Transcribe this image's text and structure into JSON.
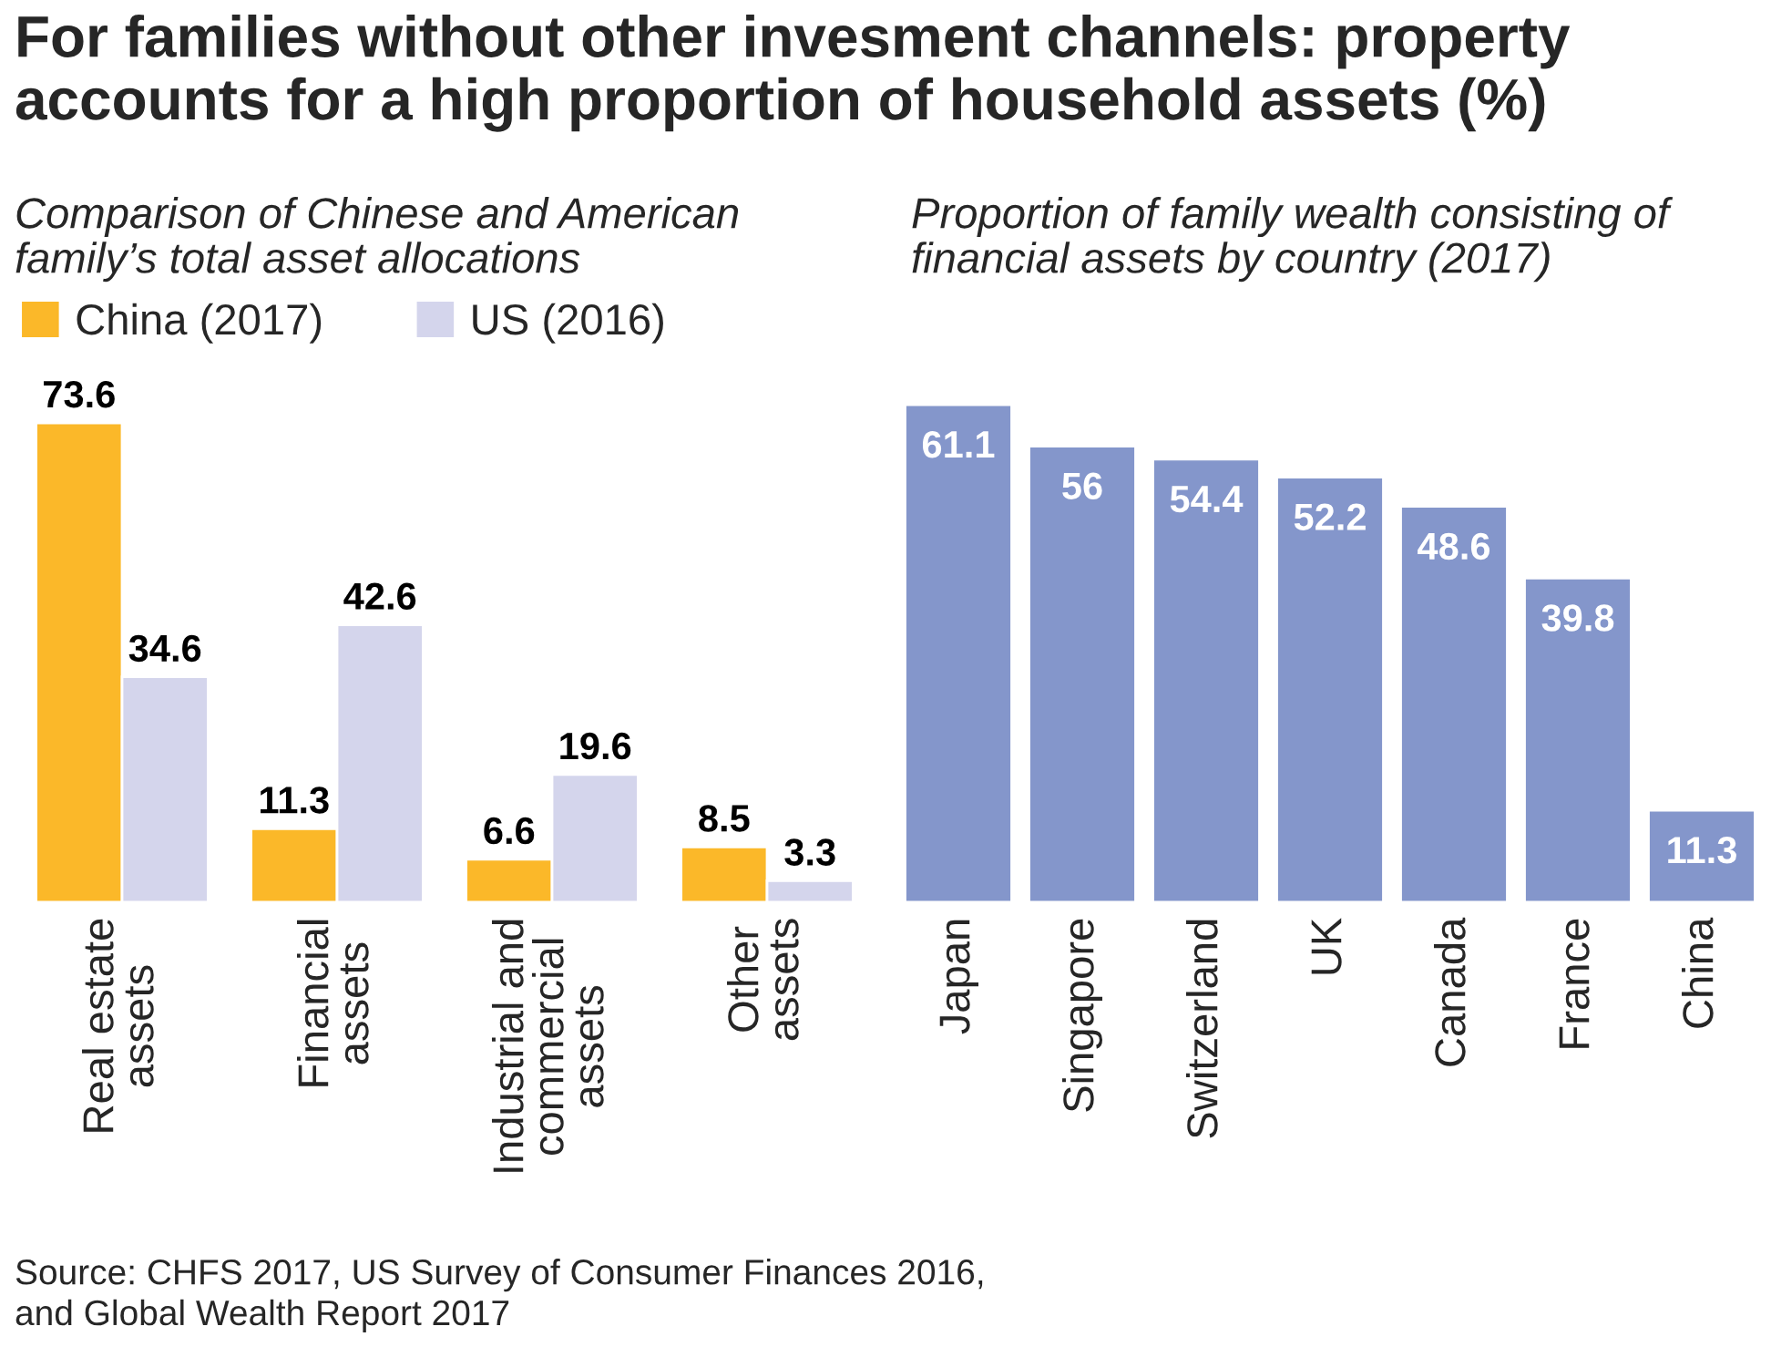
{
  "chart_data": [
    {
      "type": "bar",
      "title": "For families without other invesment channels: property\naccounts for a high proportion of household assets (%)",
      "subtitle": "Comparison of Chinese and American\nfamily’s total asset allocations",
      "categories": [
        "Real estate\nassets",
        "Financial\nassets",
        "Industrial and\ncommercial\nassets",
        "Other\nassets"
      ],
      "series": [
        {
          "name": "China (2017)",
          "color": "#fbb829",
          "values": [
            73.6,
            11.3,
            6.6,
            8.5
          ]
        },
        {
          "name": "US (2016)",
          "color": "#d4d5ec",
          "values": [
            34.6,
            42.6,
            19.6,
            3.3
          ]
        }
      ],
      "data_labels": true,
      "legend": "top left",
      "grid": false,
      "annotations": [
        "Source: CHFS 2017, US Survey of Consumer Finances 2016,\nand Global Wealth Report 2017"
      ]
    },
    {
      "type": "bar",
      "subtitle": "Proportion of family wealth consisting of\nfinancial assets by country (2017)",
      "categories": [
        "Japan",
        "Singapore",
        "Switzerland",
        "UK",
        "Canada",
        "France",
        "China"
      ],
      "series": [
        {
          "color": "#8496cb",
          "values": [
            61.1,
            56,
            54.4,
            52.2,
            48.6,
            39.8,
            11.3
          ]
        }
      ],
      "data_labels": true,
      "grid": false
    }
  ]
}
